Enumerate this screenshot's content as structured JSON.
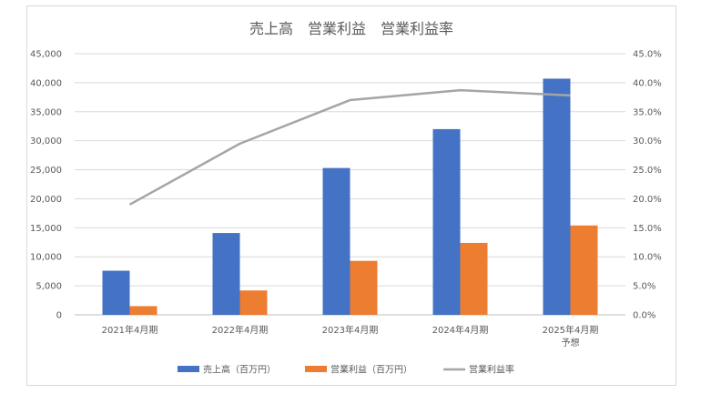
{
  "chart_data": {
    "type": "bar",
    "title": "売上高　営業利益　営業利益率",
    "categories": [
      [
        "2021年4月期"
      ],
      [
        "2022年4月期"
      ],
      [
        "2023年4月期"
      ],
      [
        "2024年4月期"
      ],
      [
        "2025年4月期",
        "予想"
      ]
    ],
    "series": [
      {
        "name": "売上高（百万円）",
        "kind": "bar",
        "axis": "left",
        "color": "#4472C4",
        "values": [
          7600,
          14100,
          25300,
          32000,
          40700
        ]
      },
      {
        "name": "営業利益（百万円）",
        "kind": "bar",
        "axis": "left",
        "color": "#ED7D31",
        "values": [
          1500,
          4200,
          9300,
          12400,
          15400
        ]
      },
      {
        "name": "営業利益率",
        "kind": "line",
        "axis": "right",
        "color": "#A5A5A5",
        "values": [
          19.0,
          29.5,
          37.0,
          38.7,
          37.8
        ]
      }
    ],
    "left_axis": {
      "min": 0,
      "max": 45000,
      "step": 5000,
      "tick_labels": [
        "0",
        "5,000",
        "10,000",
        "15,000",
        "20,000",
        "25,000",
        "30,000",
        "35,000",
        "40,000",
        "45,000"
      ]
    },
    "right_axis": {
      "min": 0,
      "max": 45,
      "step": 5,
      "tick_labels": [
        "0.0%",
        "5.0%",
        "10.0%",
        "15.0%",
        "20.0%",
        "25.0%",
        "30.0%",
        "35.0%",
        "40.0%",
        "45.0%"
      ]
    },
    "grid": true,
    "legend_position": "bottom"
  }
}
